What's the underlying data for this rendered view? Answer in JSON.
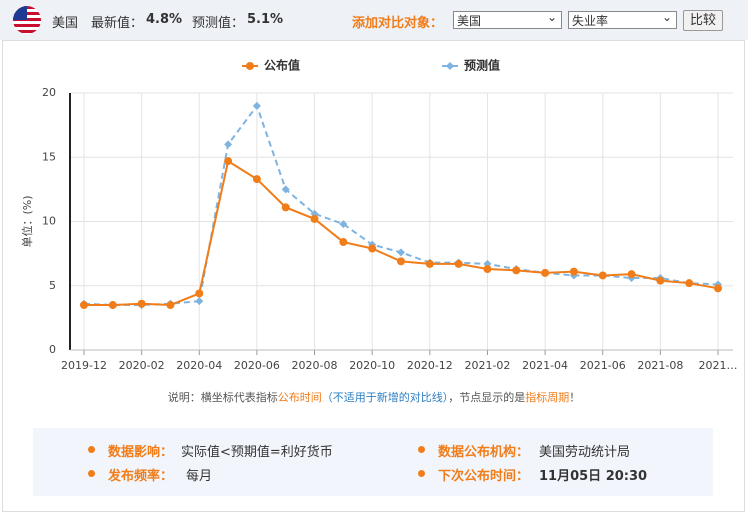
{
  "header": {
    "country": "美国",
    "latest_label": "最新值：",
    "latest_value": "4.8%",
    "forecast_label": "预测值：",
    "forecast_value": "5.1%",
    "compare_label": "添加对比对象：",
    "select_country": "美国",
    "select_indicator": "失业率",
    "button": "比较"
  },
  "chart_data": {
    "type": "line",
    "y_label": "单位：(%)",
    "categories": [
      "2019-12",
      null,
      "2020-02",
      null,
      "2020-04",
      null,
      "2020-06",
      null,
      "2020-08",
      null,
      "2020-10",
      null,
      "2020-12",
      null,
      "2021-02",
      null,
      "2021-04",
      null,
      "2021-06",
      null,
      "2021-08",
      null,
      "2021…"
    ],
    "series": [
      {
        "name": "公布值",
        "color": "#f07d1a",
        "marker": "circle",
        "dashed": false,
        "values": [
          3.5,
          3.5,
          3.6,
          3.5,
          4.4,
          14.7,
          13.3,
          11.1,
          10.2,
          8.4,
          7.9,
          6.9,
          6.7,
          6.7,
          6.3,
          6.2,
          6.0,
          6.1,
          5.8,
          5.9,
          5.4,
          5.2,
          4.8
        ]
      },
      {
        "name": "预测值",
        "color": "#7fb4e0",
        "marker": "diamond",
        "dashed": true,
        "values": [
          3.6,
          3.5,
          3.5,
          3.6,
          3.8,
          16.0,
          19.0,
          12.5,
          10.6,
          9.8,
          8.2,
          7.6,
          6.8,
          6.8,
          6.7,
          6.3,
          6.0,
          5.8,
          5.8,
          5.6,
          5.6,
          5.2,
          5.1
        ]
      }
    ],
    "ylim": [
      0,
      20
    ],
    "yticks": [
      0,
      5,
      10,
      15,
      20
    ],
    "grid": true
  },
  "note": {
    "p1": "说明：横坐标代表指标",
    "p2": "公布时间",
    "p3": "（不适用于新增的对比线）",
    "p4": "，节点显示的是",
    "p5": "指标周期",
    "p6": "！"
  },
  "info": {
    "impact_label": "数据影响：",
    "impact_value": "实际值<预期值=利好货币",
    "org_label": "数据公布机构：",
    "org_value": "美国劳动统计局",
    "freq_label": "发布频率：",
    "freq_value": "每月",
    "next_label": "下次公布时间：",
    "next_value": "11月05日 20:30"
  }
}
